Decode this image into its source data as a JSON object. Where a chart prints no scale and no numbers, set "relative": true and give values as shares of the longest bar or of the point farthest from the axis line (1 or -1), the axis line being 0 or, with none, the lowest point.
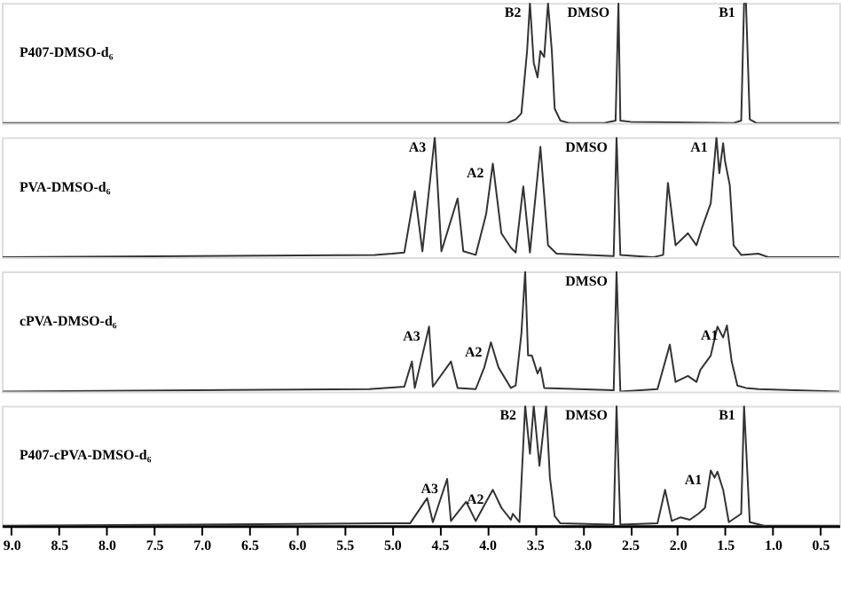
{
  "chart_data": [
    {
      "type": "line",
      "relative": true,
      "tick_labels": false,
      "xlim": [
        9.1,
        0.3
      ],
      "line_style": "solid",
      "marker": "none",
      "grid": false,
      "series": [
        {
          "name": "P407-DMSO-d₆",
          "color": "#333333",
          "x": [
            9.09,
            3.79,
            3.7,
            3.64,
            3.58,
            3.55,
            3.51,
            3.47,
            3.44,
            3.4,
            3.36,
            3.32,
            3.29,
            3.23,
            3.14,
            2.77,
            2.65,
            2.62,
            2.6,
            2.49,
            1.41,
            1.33,
            1.3,
            1.28,
            1.24,
            1.17,
            0.3
          ],
          "values": [
            0,
            0,
            0.03,
            0.08,
            0.6,
            1,
            0.5,
            0.38,
            0.6,
            0.55,
            1,
            0.6,
            0.12,
            0.02,
            0,
            0,
            0.02,
            1,
            0.02,
            0.01,
            0,
            0.02,
            1,
            1,
            0.03,
            0,
            0
          ]
        }
      ],
      "annotations": [
        {
          "text": "B2",
          "x": 3.55,
          "y": 1
        },
        {
          "text": "DMSO",
          "x": 2.62,
          "y": 1
        },
        {
          "text": "B1",
          "x": 1.3,
          "y": 1
        }
      ]
    },
    {
      "type": "line",
      "relative": true,
      "tick_labels": false,
      "xlim": [
        9.1,
        0.3
      ],
      "line_style": "solid",
      "marker": "none",
      "grid": false,
      "series": [
        {
          "name": "PVA-DMSO-d₆",
          "color": "#333333",
          "x": [
            9.09,
            5.18,
            5.0,
            4.87,
            4.76,
            4.68,
            4.55,
            4.48,
            4.31,
            4.25,
            4.12,
            4.01,
            3.94,
            3.85,
            3.75,
            3.7,
            3.62,
            3.55,
            3.44,
            3.36,
            3.27,
            2.67,
            2.64,
            2.6,
            2.26,
            2.15,
            2.1,
            2.02,
            1.89,
            1.8,
            1.74,
            1.65,
            1.59,
            1.56,
            1.52,
            1.5,
            1.45,
            1.41,
            1.33,
            1.15,
            1.04,
            0.3
          ],
          "values": [
            0,
            0.02,
            0.03,
            0.04,
            0.55,
            0.05,
            1,
            0.05,
            0.49,
            0.05,
            0.02,
            0.36,
            0.78,
            0.2,
            0.08,
            0.04,
            0.59,
            0.04,
            0.92,
            0.1,
            0.03,
            0.01,
            1,
            0.02,
            0,
            0.02,
            0.62,
            0.1,
            0.2,
            0.1,
            0.25,
            0.45,
            1,
            0.7,
            0.95,
            0.8,
            0.6,
            0.1,
            0.02,
            0.03,
            0,
            0
          ]
        }
      ],
      "annotations": [
        {
          "text": "A3",
          "x": 4.55,
          "y": 1
        },
        {
          "text": "A2",
          "x": 3.94,
          "y": 0.78
        },
        {
          "text": "DMSO",
          "x": 2.64,
          "y": 1
        },
        {
          "text": "A1",
          "x": 1.59,
          "y": 1
        }
      ]
    },
    {
      "type": "line",
      "relative": true,
      "tick_labels": false,
      "xlim": [
        9.1,
        0.3
      ],
      "line_style": "solid",
      "marker": "none",
      "grid": false,
      "series": [
        {
          "name": "cPVA-DMSO-d₆",
          "color": "#333333",
          "x": [
            9.09,
            5.24,
            4.87,
            4.79,
            4.76,
            4.61,
            4.57,
            4.38,
            4.31,
            4.12,
            4.03,
            3.96,
            3.88,
            3.75,
            3.7,
            3.64,
            3.6,
            3.57,
            3.53,
            3.47,
            3.44,
            3.4,
            2.67,
            2.64,
            2.6,
            2.21,
            2.08,
            2.02,
            1.89,
            1.8,
            1.76,
            1.65,
            1.58,
            1.52,
            1.48,
            1.43,
            1.37,
            1.28,
            1.15,
            0.3
          ],
          "values": [
            0,
            0.02,
            0.04,
            0.25,
            0.03,
            0.54,
            0.04,
            0.25,
            0.03,
            0.02,
            0.2,
            0.41,
            0.2,
            0.03,
            0.05,
            0.48,
            1,
            0.3,
            0.3,
            0.15,
            0.2,
            0.03,
            0.01,
            1,
            0,
            0.02,
            0.39,
            0.08,
            0.13,
            0.08,
            0.18,
            0.3,
            0.54,
            0.45,
            0.55,
            0.25,
            0.05,
            0.03,
            0.02,
            0
          ]
        }
      ],
      "annotations": [
        {
          "text": "A3",
          "x": 4.61,
          "y": 0.54
        },
        {
          "text": "A2",
          "x": 3.96,
          "y": 0.41
        },
        {
          "text": "DMSO",
          "x": 2.64,
          "y": 1
        },
        {
          "text": "A1",
          "x": 1.48,
          "y": 0.55
        }
      ]
    },
    {
      "type": "line",
      "relative": true,
      "tick_labels": "x",
      "xlim": [
        9.1,
        0.3
      ],
      "line_style": "solid",
      "marker": "none",
      "grid": false,
      "xticks": [
        {
          "value": 9,
          "label": "9.0"
        },
        8.5,
        {
          "value": 8,
          "label": "8.0"
        },
        7.5,
        {
          "value": 7,
          "label": "7.0"
        },
        6.5,
        {
          "value": 6,
          "label": "6.0"
        },
        5.5,
        {
          "value": 5,
          "label": "5.0"
        },
        4.5,
        {
          "value": 4,
          "label": "4.0"
        },
        3.5,
        {
          "value": 3,
          "label": "3.0"
        },
        2.5,
        {
          "value": 2,
          "label": "2.0"
        },
        1.5,
        {
          "value": 1,
          "label": "1.0"
        },
        0.5
      ],
      "series": [
        {
          "name": "P407-cPVA-DMSO-d₆",
          "color": "#333333",
          "x": [
            9.09,
            5.04,
            4.81,
            4.63,
            4.57,
            4.42,
            4.38,
            4.22,
            4.12,
            4.01,
            3.94,
            3.85,
            3.75,
            3.73,
            3.66,
            3.6,
            3.55,
            3.51,
            3.45,
            3.38,
            3.34,
            3.29,
            3.23,
            2.67,
            2.64,
            2.6,
            2.21,
            2.13,
            2.06,
            1.97,
            1.87,
            1.78,
            1.71,
            1.65,
            1.61,
            1.58,
            1.52,
            1.46,
            1.33,
            1.3,
            1.24,
            1.09,
            0.3
          ],
          "values": [
            0,
            0.02,
            0.02,
            0.23,
            0.03,
            0.39,
            0.04,
            0.2,
            0.04,
            0.2,
            0.3,
            0.15,
            0.05,
            0.1,
            0.03,
            1,
            0.6,
            1,
            0.5,
            1,
            0.4,
            0.08,
            0.02,
            0.01,
            1,
            0.01,
            0.02,
            0.3,
            0.04,
            0.07,
            0.05,
            0.1,
            0.15,
            0.46,
            0.4,
            0.45,
            0.3,
            0.03,
            0.1,
            1,
            0.03,
            0,
            0
          ]
        }
      ],
      "annotations": [
        {
          "text": "B2",
          "x": 3.6,
          "y": 1
        },
        {
          "text": "A3",
          "x": 4.42,
          "y": 0.39
        },
        {
          "text": "A2",
          "x": 3.94,
          "y": 0.3
        },
        {
          "text": "DMSO",
          "x": 2.64,
          "y": 1
        },
        {
          "text": "A1",
          "x": 1.65,
          "y": 0.46
        },
        {
          "text": "B1",
          "x": 1.3,
          "y": 1
        }
      ]
    }
  ]
}
